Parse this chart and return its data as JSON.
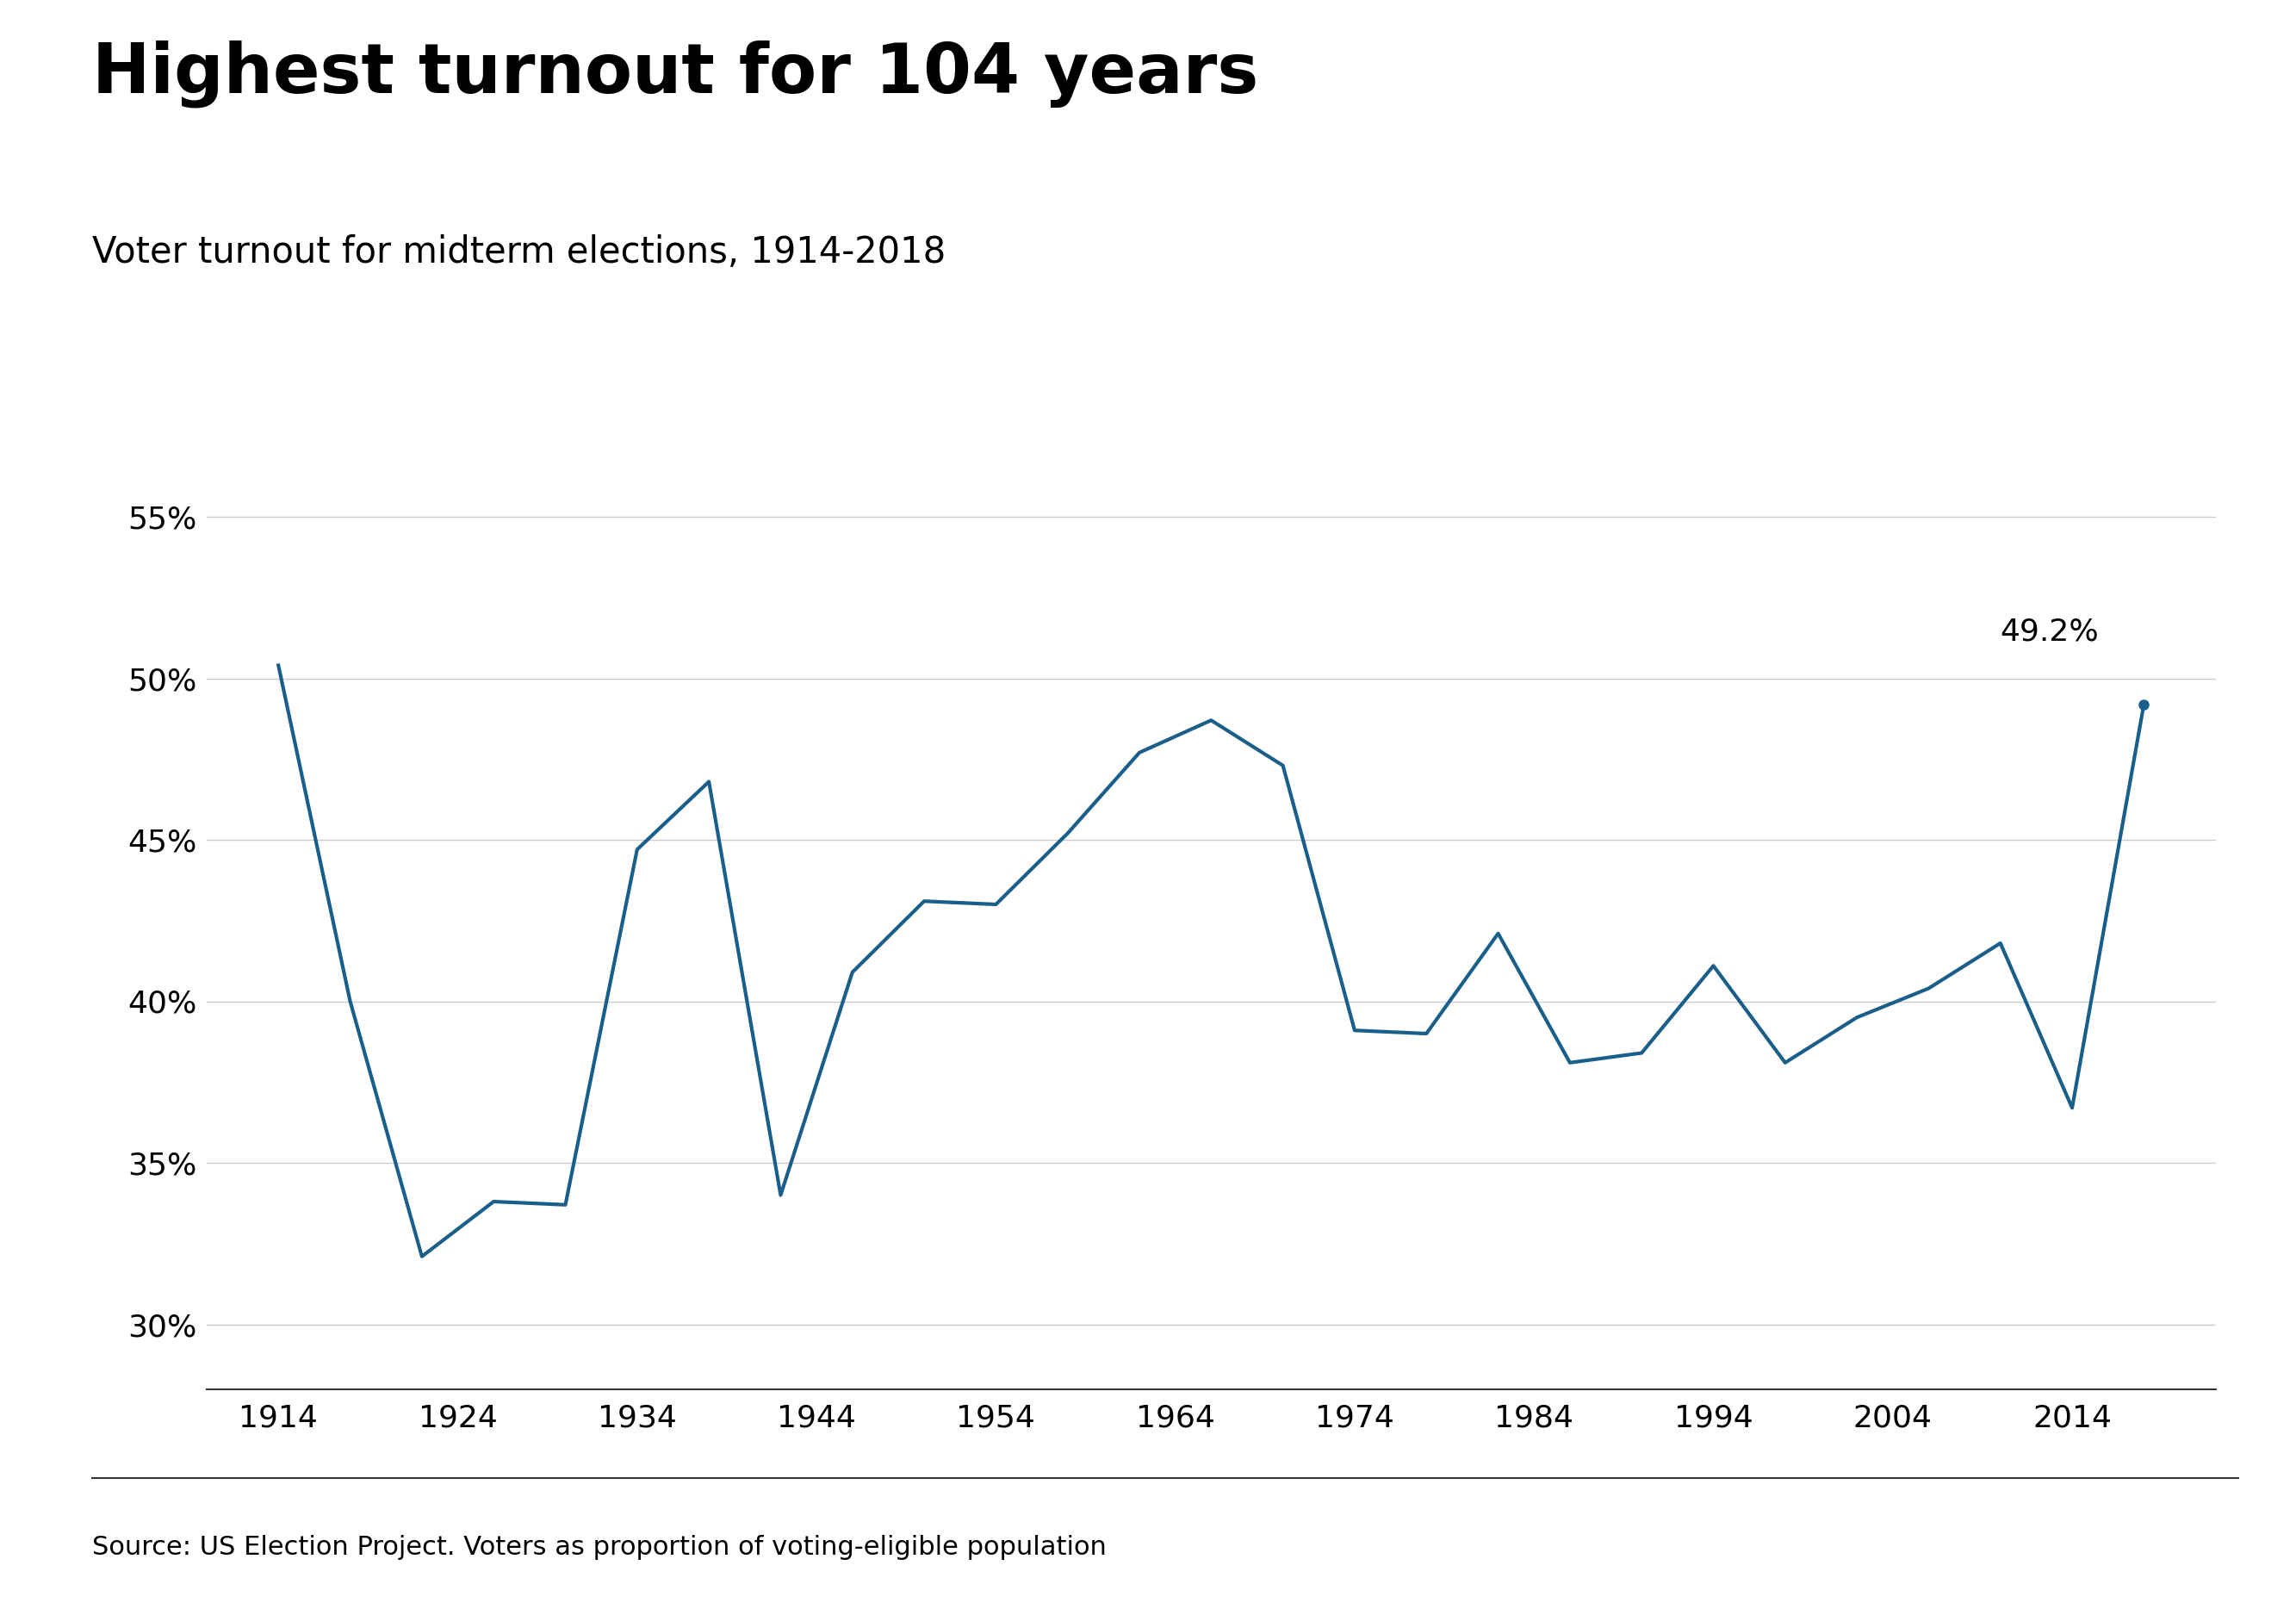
{
  "title": "Highest turnout for 104 years",
  "subtitle": "Voter turnout for midterm elections, 1914-2018",
  "source_text": "Source: US Election Project. Voters as proportion of voting-eligible population",
  "years": [
    1914,
    1918,
    1922,
    1926,
    1930,
    1934,
    1938,
    1942,
    1946,
    1950,
    1954,
    1958,
    1962,
    1966,
    1970,
    1974,
    1978,
    1982,
    1986,
    1990,
    1994,
    1998,
    2002,
    2006,
    2010,
    2014,
    2018
  ],
  "values": [
    50.4,
    40.0,
    32.1,
    33.8,
    33.7,
    44.7,
    46.8,
    34.0,
    40.9,
    43.1,
    43.0,
    45.2,
    47.7,
    48.7,
    47.3,
    39.1,
    39.0,
    42.1,
    38.1,
    38.4,
    41.1,
    38.1,
    39.5,
    40.4,
    41.8,
    36.7,
    49.2
  ],
  "line_color": "#1a5e8a",
  "annotation_text": "49.2%",
  "annotation_year": 2018,
  "annotation_value": 49.2,
  "ylim": [
    28,
    57
  ],
  "yticks": [
    30,
    35,
    40,
    45,
    50,
    55
  ],
  "xticks": [
    1914,
    1924,
    1934,
    1944,
    1954,
    1964,
    1974,
    1984,
    1994,
    2004,
    2014
  ],
  "background_color": "#ffffff",
  "grid_color": "#cccccc",
  "title_fontsize": 58,
  "subtitle_fontsize": 30,
  "source_fontsize": 22,
  "tick_fontsize": 26,
  "annotation_fontsize": 26,
  "line_width": 3.0,
  "bbc_logo_bg": "#333333",
  "bbc_logo_text": "#ffffff"
}
